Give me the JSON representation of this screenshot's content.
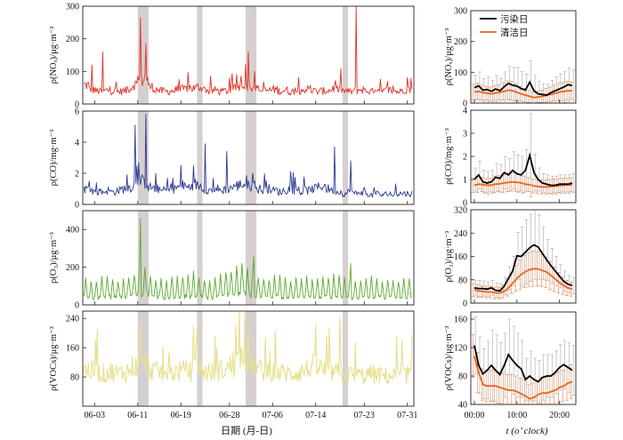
{
  "chart_data": [
    {
      "type": "line",
      "panel": "time-series",
      "x_ticks": [
        "06-03",
        "06-11",
        "06-19",
        "06-28",
        "07-06",
        "07-14",
        "07-23",
        "07-31"
      ],
      "xlabel": "日期 (月-日)",
      "pollution_episodes": [
        {
          "start": "06-11",
          "end": "06-12"
        },
        {
          "start": "06-22",
          "end": "06-22"
        },
        {
          "start": "07-01",
          "end": "07-02"
        },
        {
          "start": "07-19",
          "end": "07-19"
        }
      ],
      "series": [
        {
          "key": "NOx",
          "ylabel": "ρ(NOₓ)/μg·m⁻³",
          "color": "#e23127",
          "ylim": [
            0,
            300
          ],
          "yticks": [
            0,
            100,
            200,
            300
          ],
          "approx_daily_mean": [
            58,
            45,
            40,
            38,
            42,
            40,
            38,
            40,
            48,
            60,
            72,
            80,
            52,
            45,
            40,
            38,
            40,
            42,
            45,
            50,
            48,
            52,
            45,
            40,
            42,
            38,
            40,
            45,
            52,
            60,
            58,
            55,
            45,
            40,
            42,
            45,
            40,
            42,
            38,
            40,
            42,
            45,
            40,
            38,
            40,
            42,
            48,
            45,
            40,
            38,
            42,
            44,
            40,
            38,
            36,
            38,
            42,
            40,
            38,
            45
          ],
          "peaks": [
            {
              "date": "06-02",
              "value": 120
            },
            {
              "date": "06-04",
              "value": 160
            },
            {
              "date": "06-11",
              "value": 265
            },
            {
              "date": "06-12",
              "value": 185
            },
            {
              "date": "07-01",
              "value": 160
            },
            {
              "date": "07-21",
              "value": 305
            }
          ]
        },
        {
          "key": "CO",
          "ylabel": "ρ(CO)/mg·m⁻³",
          "color": "#2b3990",
          "ylim": [
            0,
            6
          ],
          "yticks": [
            0,
            2,
            4,
            6
          ],
          "approx_daily_mean": [
            1.0,
            0.9,
            0.8,
            0.8,
            0.9,
            0.8,
            0.9,
            1.0,
            1.1,
            1.2,
            1.5,
            1.4,
            1.1,
            1.0,
            0.9,
            0.9,
            1.0,
            1.1,
            1.2,
            1.1,
            1.3,
            1.2,
            1.0,
            0.9,
            1.0,
            0.9,
            1.0,
            1.1,
            1.2,
            1.3,
            1.2,
            1.1,
            1.0,
            0.9,
            1.0,
            0.9,
            0.8,
            0.9,
            1.0,
            0.9,
            0.8,
            0.9,
            1.0,
            1.1,
            1.2,
            1.0,
            0.9,
            0.8,
            0.7,
            0.8,
            0.7,
            0.8,
            0.7,
            0.6,
            0.7,
            0.6,
            0.7,
            0.6,
            0.7,
            0.7
          ],
          "peaks": [
            {
              "date": "06-10",
              "value": 5.1
            },
            {
              "date": "06-12",
              "value": 5.8
            },
            {
              "date": "06-23",
              "value": 3.9
            },
            {
              "date": "06-27",
              "value": 3.4
            },
            {
              "date": "07-17",
              "value": 3.7
            },
            {
              "date": "07-20",
              "value": 2.8
            }
          ]
        },
        {
          "key": "O3",
          "ylabel": "ρ(O₃)/μg·m⁻³",
          "color": "#5aaa2e",
          "ylim": [
            0,
            500
          ],
          "yticks": [
            0,
            200,
            400
          ],
          "approx_daily_mean": [
            90,
            85,
            80,
            95,
            100,
            90,
            85,
            95,
            100,
            110,
            120,
            130,
            100,
            90,
            85,
            80,
            90,
            95,
            100,
            95,
            110,
            100,
            90,
            85,
            95,
            100,
            110,
            120,
            130,
            140,
            125,
            110,
            100,
            95,
            90,
            100,
            95,
            90,
            85,
            90,
            95,
            100,
            90,
            85,
            90,
            95,
            100,
            95,
            90,
            85,
            80,
            85,
            90,
            95,
            85,
            80,
            85,
            90,
            85,
            90
          ],
          "peaks": [
            {
              "date": "06-11",
              "value": 460
            },
            {
              "date": "07-02",
              "value": 260
            },
            {
              "date": "07-20",
              "value": 220
            }
          ]
        },
        {
          "key": "VOCs",
          "ylabel": "ρ(VOCs)/μg·m⁻³",
          "color": "#e6e18f",
          "ylim": [
            0,
            260
          ],
          "yticks": [
            80,
            160,
            240
          ],
          "approx_daily_mean": [
            100,
            95,
            90,
            88,
            92,
            95,
            90,
            92,
            98,
            110,
            120,
            115,
            100,
            95,
            92,
            90,
            92,
            95,
            98,
            96,
            105,
            100,
            95,
            92,
            95,
            98,
            102,
            110,
            125,
            135,
            120,
            110,
            100,
            95,
            92,
            95,
            92,
            90,
            88,
            92,
            95,
            100,
            110,
            105,
            98,
            95,
            92,
            90,
            88,
            86,
            85,
            84,
            86,
            88,
            85,
            84,
            82,
            84,
            86,
            88
          ],
          "peaks": [
            {
              "date": "06-03",
              "value": 210
            },
            {
              "date": "06-11",
              "value": 225
            },
            {
              "date": "07-01",
              "value": 205
            },
            {
              "date": "07-16",
              "value": 215
            },
            {
              "date": "07-18",
              "value": 245
            }
          ]
        }
      ]
    },
    {
      "type": "line",
      "panel": "diurnal",
      "x_ticks": [
        "00:00",
        "10:00",
        "20:00"
      ],
      "xlabel": "t (o’ clock)",
      "legend": [
        "污染日",
        "清洁日"
      ],
      "legend_position": "top-left",
      "series_colors": {
        "pollution": "#000000",
        "clean": "#e8651e"
      },
      "hours": [
        0,
        1,
        2,
        3,
        4,
        5,
        6,
        7,
        8,
        9,
        10,
        11,
        12,
        13,
        14,
        15,
        16,
        17,
        18,
        19,
        20,
        21,
        22,
        23
      ],
      "panels": [
        {
          "key": "NOx",
          "ylabel": "ρ(NOₓ)/μg·m⁻³",
          "ylim": [
            0,
            300
          ],
          "yticks": [
            0,
            100,
            200,
            300
          ],
          "pollution": [
            50,
            56,
            42,
            44,
            38,
            46,
            40,
            53,
            64,
            58,
            55,
            47,
            42,
            68,
            40,
            30,
            28,
            26,
            34,
            40,
            46,
            52,
            60,
            57
          ],
          "clean": [
            36,
            38,
            34,
            32,
            30,
            33,
            35,
            38,
            42,
            40,
            35,
            30,
            26,
            22,
            18,
            20,
            22,
            25,
            28,
            32,
            36,
            38,
            40,
            40
          ],
          "pollution_err": [
            40,
            45,
            38,
            40,
            35,
            42,
            40,
            48,
            55,
            58,
            60,
            55,
            52,
            70,
            50,
            40,
            35,
            35,
            40,
            45,
            48,
            50,
            55,
            50
          ],
          "clean_err": [
            25,
            26,
            24,
            22,
            22,
            24,
            25,
            28,
            30,
            30,
            28,
            24,
            22,
            20,
            18,
            18,
            20,
            22,
            24,
            26,
            28,
            30,
            30,
            28
          ]
        },
        {
          "key": "CO",
          "ylabel": "ρ(CO)/mg·m⁻³",
          "ylim": [
            0,
            4
          ],
          "yticks": [
            0,
            1,
            2,
            3,
            4
          ],
          "pollution": [
            1.0,
            1.2,
            0.9,
            0.85,
            0.9,
            1.1,
            1.05,
            1.3,
            1.2,
            1.4,
            1.25,
            1.2,
            1.4,
            2.05,
            1.3,
            1.0,
            0.85,
            0.8,
            0.75,
            0.75,
            0.8,
            0.8,
            0.8,
            0.85
          ],
          "clean": [
            0.75,
            0.8,
            0.78,
            0.75,
            0.76,
            0.8,
            0.82,
            0.85,
            0.88,
            0.9,
            0.88,
            0.85,
            0.8,
            0.78,
            0.72,
            0.7,
            0.68,
            0.68,
            0.7,
            0.72,
            0.74,
            0.76,
            0.76,
            0.78
          ],
          "pollution_err": [
            0.5,
            0.6,
            0.5,
            0.5,
            0.5,
            0.6,
            0.6,
            0.7,
            0.7,
            0.8,
            0.8,
            0.8,
            0.9,
            1.8,
            0.8,
            0.5,
            0.4,
            0.4,
            0.4,
            0.4,
            0.4,
            0.4,
            0.4,
            0.4
          ],
          "clean_err": [
            0.3,
            0.35,
            0.3,
            0.3,
            0.3,
            0.35,
            0.35,
            0.4,
            0.4,
            0.4,
            0.4,
            0.35,
            0.35,
            0.3,
            0.3,
            0.3,
            0.3,
            0.3,
            0.3,
            0.3,
            0.3,
            0.3,
            0.3,
            0.3
          ]
        },
        {
          "key": "O3",
          "ylabel": "ρ(O₃)/μg·m⁻³",
          "ylim": [
            0,
            320
          ],
          "yticks": [
            0,
            80,
            160,
            240,
            320
          ],
          "pollution": [
            52,
            50,
            50,
            48,
            52,
            44,
            42,
            58,
            85,
            110,
            162,
            160,
            175,
            190,
            200,
            192,
            170,
            148,
            128,
            110,
            92,
            75,
            65,
            60
          ],
          "clean": [
            45,
            42,
            40,
            38,
            38,
            35,
            35,
            40,
            52,
            68,
            85,
            98,
            108,
            115,
            118,
            117,
            112,
            106,
            95,
            82,
            70,
            60,
            52,
            48
          ],
          "pollution_err": [
            25,
            28,
            26,
            25,
            25,
            25,
            25,
            30,
            40,
            50,
            80,
            100,
            110,
            115,
            120,
            110,
            90,
            70,
            60,
            50,
            40,
            35,
            30,
            28
          ],
          "clean_err": [
            22,
            22,
            20,
            20,
            20,
            20,
            20,
            22,
            28,
            35,
            45,
            50,
            55,
            58,
            60,
            58,
            55,
            52,
            48,
            42,
            36,
            30,
            26,
            24
          ]
        },
        {
          "key": "VOCs",
          "ylabel": "ρ(VOCs)/μg·m⁻³",
          "ylim": [
            40,
            170
          ],
          "yticks": [
            40,
            80,
            120,
            160
          ],
          "pollution": [
            123,
            95,
            83,
            88,
            95,
            88,
            82,
            95,
            110,
            102,
            95,
            90,
            75,
            80,
            75,
            72,
            78,
            80,
            80,
            85,
            92,
            96,
            92,
            88
          ],
          "clean": [
            108,
            85,
            68,
            66,
            66,
            66,
            64,
            62,
            60,
            60,
            58,
            55,
            52,
            48,
            50,
            54,
            56,
            56,
            58,
            60,
            64,
            66,
            70,
            72
          ],
          "pollution_err": [
            40,
            40,
            35,
            40,
            50,
            50,
            45,
            45,
            50,
            48,
            45,
            40,
            30,
            35,
            30,
            30,
            32,
            30,
            30,
            30,
            32,
            34,
            35,
            35
          ],
          "clean_err": [
            30,
            28,
            22,
            22,
            22,
            22,
            22,
            22,
            22,
            22,
            22,
            22,
            22,
            20,
            20,
            20,
            22,
            22,
            22,
            22,
            22,
            22,
            24,
            24
          ]
        }
      ]
    }
  ]
}
